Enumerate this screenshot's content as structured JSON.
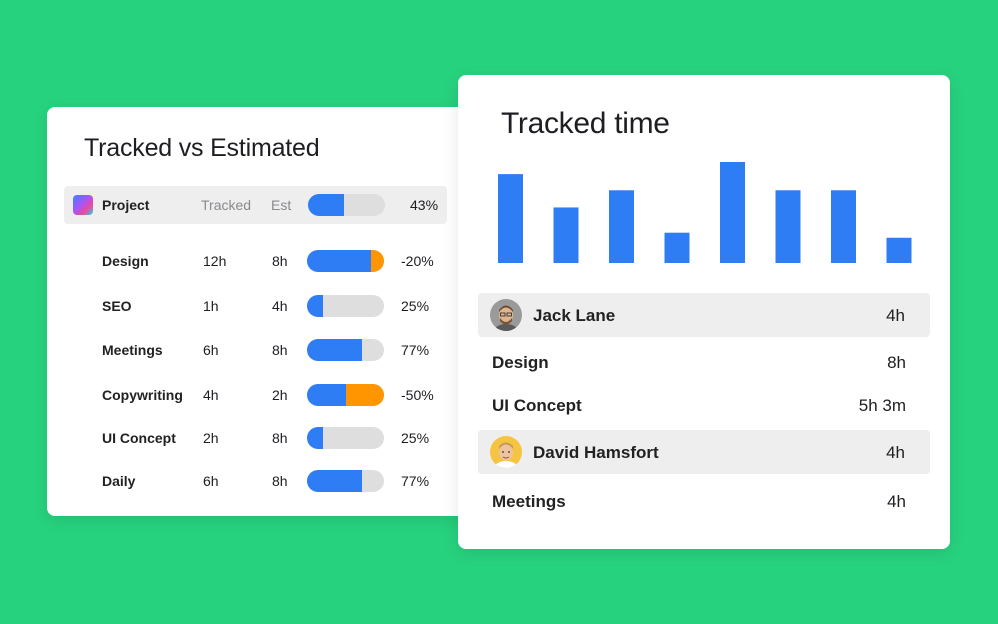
{
  "left_card": {
    "title": "Tracked vs Estimated",
    "header": {
      "label": "Project",
      "tracked_label": "Tracked",
      "est_label": "Est",
      "progress": 0.47,
      "percent": "43%"
    },
    "rows": [
      {
        "name": "Design",
        "tracked": "12h",
        "est": "8h",
        "blue": 0.83,
        "orange": 0.17,
        "percent": "-20%"
      },
      {
        "name": "SEO",
        "tracked": "1h",
        "est": "4h",
        "blue": 0.21,
        "orange": 0,
        "percent": "25%"
      },
      {
        "name": "Meetings",
        "tracked": "6h",
        "est": "8h",
        "blue": 0.71,
        "orange": 0,
        "percent": "77%"
      },
      {
        "name": "Copywriting",
        "tracked": "4h",
        "est": "2h",
        "blue": 0.5,
        "orange": 0.5,
        "percent": "-50%"
      },
      {
        "name": "UI Concept",
        "tracked": "2h",
        "est": "8h",
        "blue": 0.21,
        "orange": 0,
        "percent": "25%"
      },
      {
        "name": "Daily",
        "tracked": "6h",
        "est": "8h",
        "blue": 0.71,
        "orange": 0,
        "percent": "77%"
      }
    ]
  },
  "right_card": {
    "title": "Tracked time",
    "people": [
      {
        "name": "Jack Lane",
        "value": "4h"
      },
      {
        "name": "David Hamsfort",
        "value": "4h"
      }
    ],
    "tasks": [
      {
        "name": "Design",
        "value": "8h"
      },
      {
        "name": "UI Concept",
        "value": "5h 3m"
      },
      {
        "name": "Meetings",
        "value": "4h"
      }
    ]
  },
  "chart_data": {
    "type": "bar",
    "values": [
      88,
      55,
      72,
      30,
      100,
      72,
      72,
      25
    ],
    "ylim": [
      0,
      100
    ],
    "grid": false,
    "color": "#2f7df4"
  },
  "colors": {
    "background": "#27d27e",
    "bar_blue": "#2f7df4",
    "bar_orange": "#ff9500",
    "track_gray": "#dedede",
    "row_highlight": "#eeeeee"
  }
}
